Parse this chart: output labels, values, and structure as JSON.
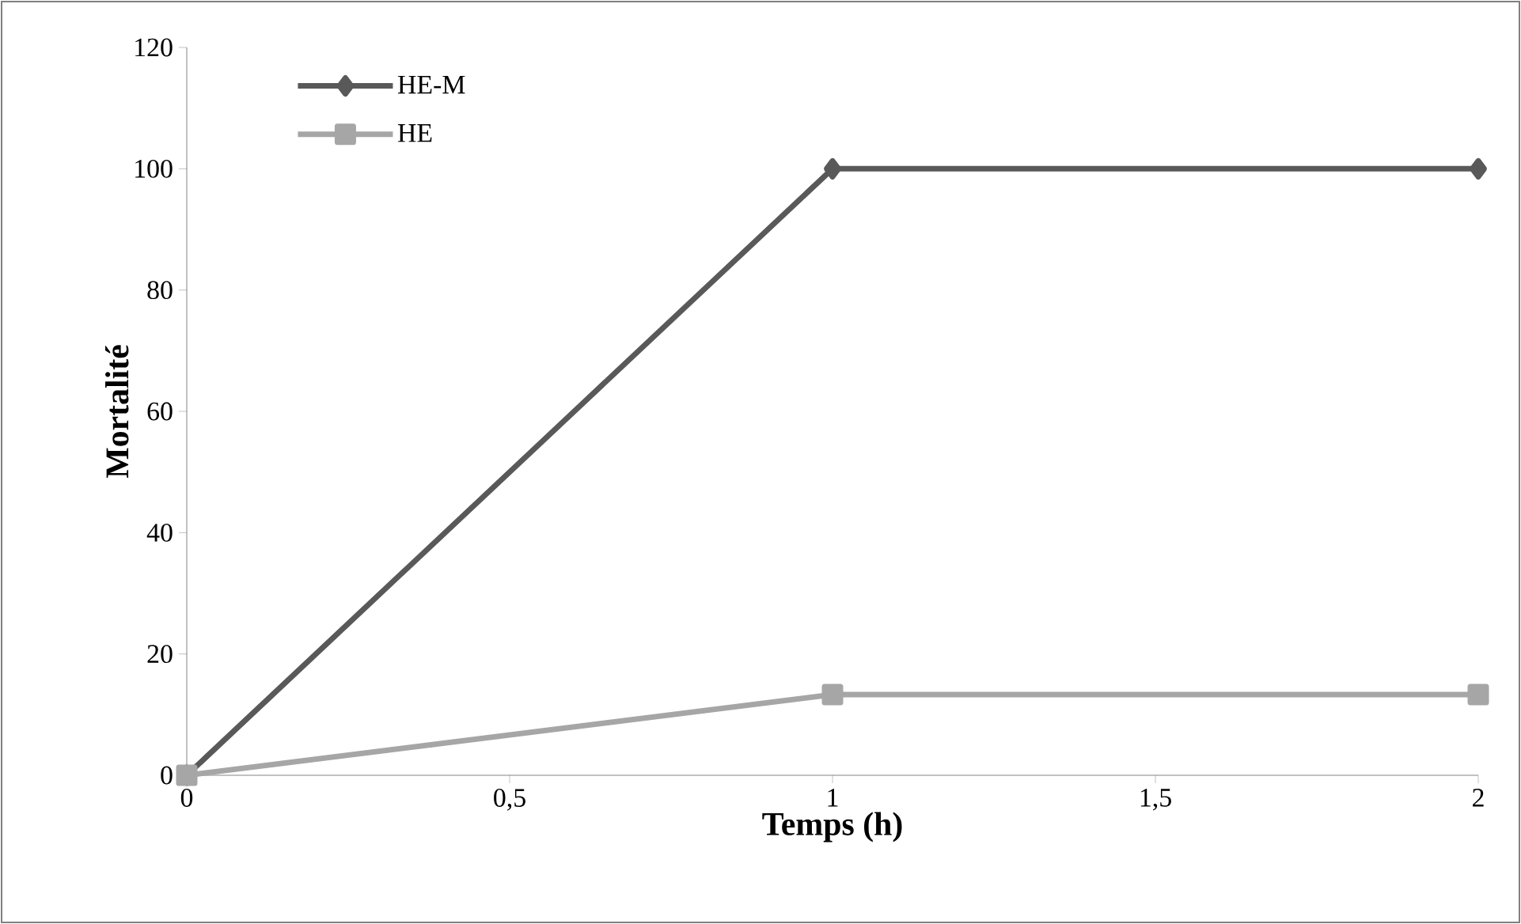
{
  "chart_data": {
    "type": "line",
    "xlabel": "Temps (h)",
    "ylabel": "Mortalité",
    "x": [
      0,
      1,
      2
    ],
    "series": [
      {
        "name": "HE-M",
        "color": "#595959",
        "marker": "diamond",
        "values": [
          0,
          100,
          100
        ]
      },
      {
        "name": "HE",
        "color": "#a6a6a6",
        "marker": "square",
        "values": [
          0,
          13.3,
          13.3
        ]
      }
    ],
    "xlim": [
      0,
      2
    ],
    "ylim": [
      0,
      120
    ],
    "xticks": [
      0,
      {
        "value": 0.5,
        "label": "0,5"
      },
      1,
      {
        "value": 1.5,
        "label": "1,5"
      },
      2
    ],
    "yticks": [
      0,
      20,
      40,
      60,
      80,
      100,
      120
    ],
    "grid": false,
    "legend": "top left"
  }
}
